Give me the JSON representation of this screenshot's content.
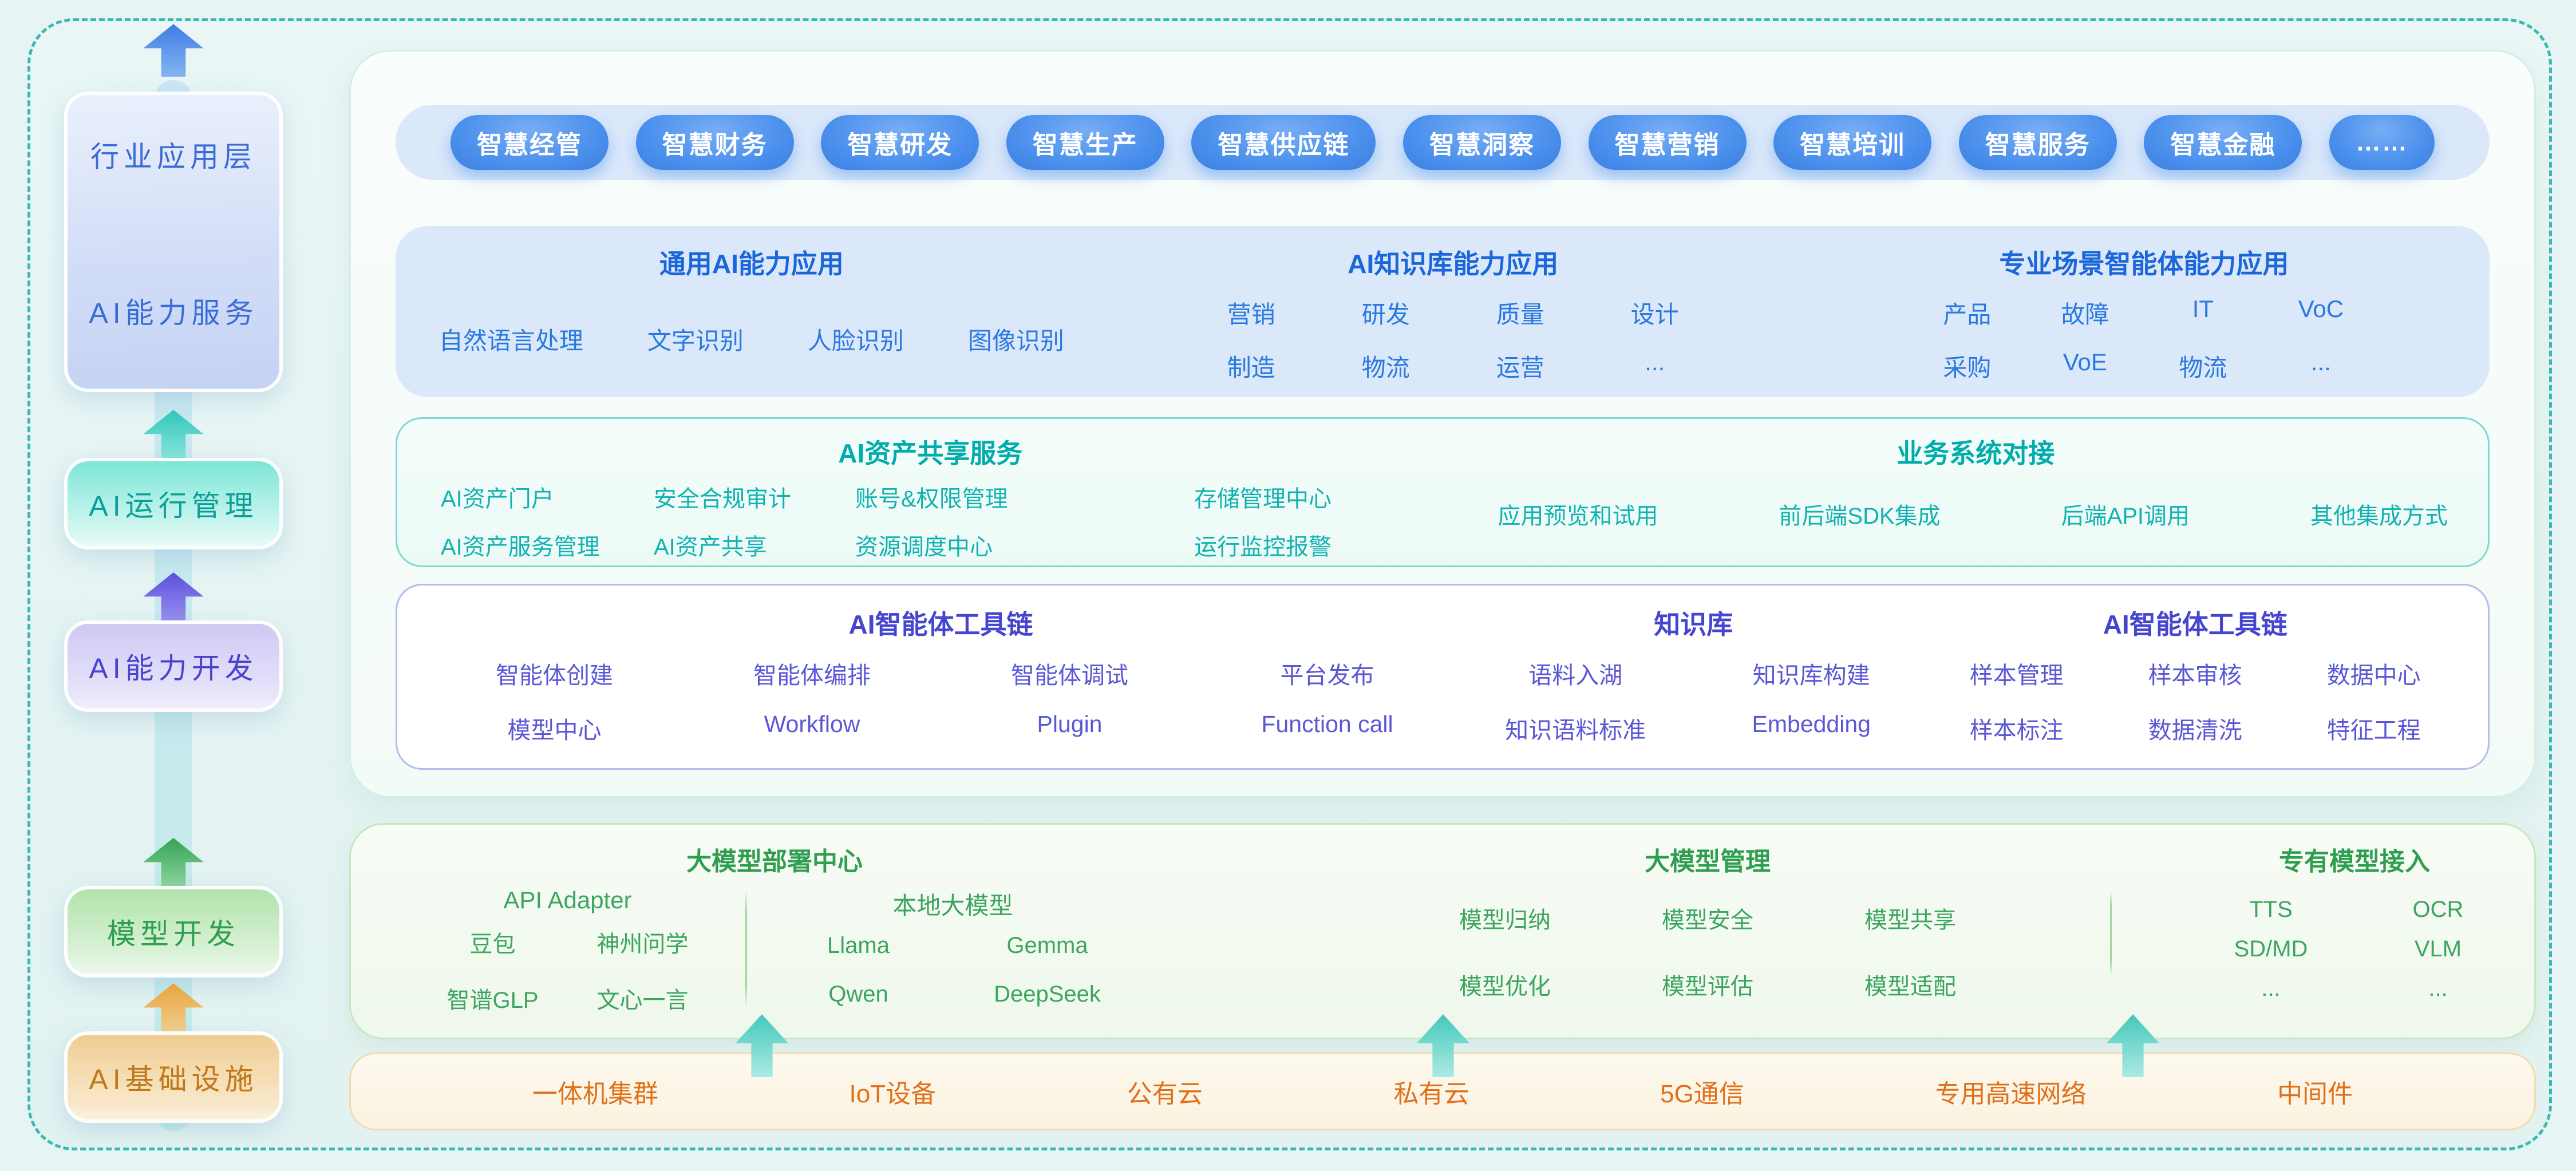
{
  "colors": {
    "frame_dash": "#38bab1",
    "pill_blue": "#4a90ec",
    "cap_blue": "#2a79e0",
    "teal": "#12b2b2",
    "purple": "#5a58d6",
    "green": "#3ca55f",
    "orange": "#e0701a"
  },
  "sidebar": {
    "layers": [
      {
        "labels": [
          "行业应用层",
          "AI能力服务"
        ]
      },
      {
        "labels": [
          "AI运行管理"
        ]
      },
      {
        "labels": [
          "AI能力开发"
        ]
      },
      {
        "labels": [
          "模型开发"
        ]
      },
      {
        "labels": [
          "AI基础设施"
        ]
      }
    ]
  },
  "app_pills": [
    "智慧经管",
    "智慧财务",
    "智慧研发",
    "智慧生产",
    "智慧供应链",
    "智慧洞察",
    "智慧营销",
    "智慧培训",
    "智慧服务",
    "智慧金融",
    "……"
  ],
  "capability_row": {
    "general": {
      "title": "通用AI能力应用",
      "items": [
        "自然语言处理",
        "文字识别",
        "人脸识别",
        "图像识别"
      ]
    },
    "knowledge": {
      "title": "AI知识库能力应用",
      "rows": [
        [
          "营销",
          "研发",
          "质量",
          "设计"
        ],
        [
          "制造",
          "物流",
          "运营",
          "..."
        ]
      ]
    },
    "scenarios": {
      "title": "专业场景智能体能力应用",
      "rows": [
        [
          "产品",
          "故障",
          "IT",
          "VoC"
        ],
        [
          "采购",
          "VoE",
          "物流",
          "..."
        ]
      ]
    }
  },
  "asset_row": {
    "sharing": {
      "title": "AI资产共享服务",
      "rows": [
        [
          "AI资产门户",
          "安全合规审计",
          "账号&权限管理",
          "存储管理中心"
        ],
        [
          "AI资产服务管理",
          "AI资产共享",
          "资源调度中心",
          "运行监控报警"
        ]
      ]
    },
    "integration": {
      "title": "业务系统对接",
      "items": [
        "应用预览和试用",
        "前后端SDK集成",
        "后端API调用",
        "其他集成方式"
      ]
    }
  },
  "tooling_row": {
    "agent_toolchain": {
      "title": "AI智能体工具链",
      "rows": [
        [
          "智能体创建",
          "智能体编排",
          "智能体调试",
          "平台发布"
        ],
        [
          "模型中心",
          "Workflow",
          "Plugin",
          "Function call"
        ]
      ]
    },
    "knowledge_base": {
      "title": "知识库",
      "rows": [
        [
          "语料入湖",
          "知识库构建"
        ],
        [
          "知识语料标准",
          "Embedding"
        ]
      ]
    },
    "data_toolchain": {
      "title": "AI智能体工具链",
      "rows": [
        [
          "样本管理",
          "样本审核",
          "数据中心"
        ],
        [
          "样本标注",
          "数据清洗",
          "特征工程"
        ]
      ]
    }
  },
  "model_row": {
    "deployment": {
      "title": "大模型部署中心",
      "api_adapter": {
        "title": "API Adapter",
        "rows": [
          [
            "豆包",
            "神州问学"
          ],
          [
            "智谱GLP",
            "文心一言"
          ]
        ]
      },
      "local_models": {
        "title": "本地大模型",
        "rows": [
          [
            "Llama",
            "Gemma"
          ],
          [
            "Qwen",
            "DeepSeek"
          ]
        ]
      }
    },
    "management": {
      "title": "大模型管理",
      "rows": [
        [
          "模型归纳",
          "模型安全",
          "模型共享"
        ],
        [
          "模型优化",
          "模型评估",
          "模型适配"
        ]
      ]
    },
    "proprietary": {
      "title": "专有模型接入",
      "rows": [
        [
          "TTS",
          "OCR"
        ],
        [
          "SD/MD",
          "VLM"
        ],
        [
          "...",
          "..."
        ]
      ]
    }
  },
  "infra_bar": {
    "items": [
      "一体机集群",
      "IoT设备",
      "公有云",
      "私有云",
      "5G通信",
      "专用高速网络",
      "中间件"
    ]
  }
}
